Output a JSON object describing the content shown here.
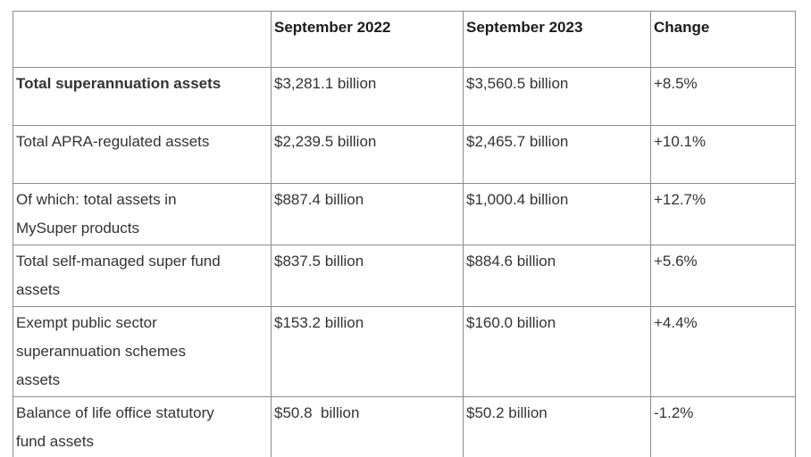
{
  "colors": {
    "border": "#8c8c8c",
    "header_text": "#1b1b1b",
    "body_text": "#333333",
    "background": "#ffffff"
  },
  "table": {
    "header": {
      "col0": "",
      "col1": "September 2022",
      "col2": "September 2023",
      "col3": "Change"
    },
    "rows": [
      {
        "label": "Total superannuation assets",
        "v2022": "$3,281.1 billion",
        "v2023": "$3,560.5 billion",
        "change": "+8.5%"
      },
      {
        "label": "Total APRA-regulated assets",
        "v2022": "$2,239.5 billion",
        "v2023": "$2,465.7 billion",
        "change": "+10.1%"
      },
      {
        "label": "Of which: total assets in\nMySuper products",
        "v2022": "$887.4 billion",
        "v2023": "$1,000.4 billion",
        "change": "+12.7%"
      },
      {
        "label": "Total self-managed super fund\nassets",
        "v2022": "$837.5 billion",
        "v2023": "$884.6 billion",
        "change": "+5.6%"
      },
      {
        "label": "Exempt public sector\nsuperannuation schemes\nassets",
        "v2022": "$153.2 billion",
        "v2023": "$160.0 billion",
        "change": "+4.4%"
      },
      {
        "label": "Balance of life office statutory\nfund assets",
        "v2022": "$50.8  billion",
        "v2023": "$50.2 billion",
        "change": "-1.2%"
      }
    ]
  },
  "chart_data": {
    "type": "table",
    "title": "Superannuation assets, September 2022 vs September 2023",
    "columns": [
      "",
      "September 2022",
      "September 2023",
      "Change"
    ],
    "rows": [
      [
        "Total superannuation assets",
        "$3,281.1 billion",
        "$3,560.5 billion",
        "+8.5%"
      ],
      [
        "Total APRA-regulated assets",
        "$2,239.5 billion",
        "$2,465.7 billion",
        "+10.1%"
      ],
      [
        "Of which: total assets in MySuper products",
        "$887.4 billion",
        "$1,000.4 billion",
        "+12.7%"
      ],
      [
        "Total self-managed super fund assets",
        "$837.5 billion",
        "$884.6 billion",
        "+5.6%"
      ],
      [
        "Exempt public sector superannuation schemes assets",
        "$153.2 billion",
        "$160.0 billion",
        "+4.4%"
      ],
      [
        "Balance of life office statutory fund assets",
        "$50.8 billion",
        "$50.2 billion",
        "-1.2%"
      ]
    ],
    "values_billion": {
      "september_2022": [
        3281.1,
        2239.5,
        887.4,
        837.5,
        153.2,
        50.8
      ],
      "september_2023": [
        3560.5,
        2465.7,
        1000.4,
        884.6,
        160.0,
        50.2
      ],
      "change_percent": [
        8.5,
        10.1,
        12.7,
        5.6,
        4.4,
        -1.2
      ]
    }
  }
}
